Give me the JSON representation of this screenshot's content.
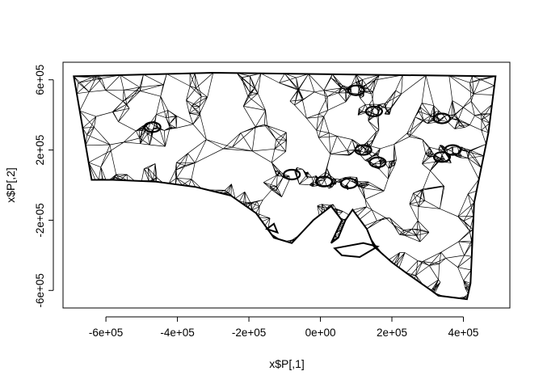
{
  "chart_data": {
    "type": "scatter",
    "title": "",
    "xlabel": "x$P[,1]",
    "ylabel": "x$P[,2]",
    "xlim": [
      -720000,
      530000
    ],
    "ylim": [
      -700000,
      700000
    ],
    "x_ticks": [
      -600000,
      -400000,
      -200000,
      0,
      200000,
      400000
    ],
    "x_tick_labels": [
      "-6e+05",
      "-4e+05",
      "-2e+05",
      "0e+00",
      "2e+05",
      "4e+05"
    ],
    "y_ticks": [
      -600000,
      -200000,
      200000,
      600000
    ],
    "y_tick_labels": [
      "-6e+05",
      "-2e+05",
      "2e+05",
      "6e+05"
    ],
    "grid": false,
    "legend": "none",
    "description_colors": {
      "line": "#000000",
      "background": "#ffffff"
    },
    "boundary": [
      [
        -690000,
        620000
      ],
      [
        -300000,
        640000
      ],
      [
        100000,
        630000
      ],
      [
        490000,
        620000
      ],
      [
        470000,
        300000
      ],
      [
        430000,
        -100000
      ],
      [
        420000,
        -560000
      ],
      [
        410000,
        -650000
      ],
      [
        330000,
        -630000
      ],
      [
        310000,
        -600000
      ],
      [
        240000,
        -500000
      ],
      [
        200000,
        -440000
      ],
      [
        150000,
        -350000
      ],
      [
        130000,
        -250000
      ],
      [
        90000,
        -140000
      ],
      [
        70000,
        -200000
      ],
      [
        50000,
        -300000
      ],
      [
        30000,
        -330000
      ],
      [
        60000,
        -200000
      ],
      [
        30000,
        -120000
      ],
      [
        -20000,
        -200000
      ],
      [
        -80000,
        -330000
      ],
      [
        -130000,
        -300000
      ],
      [
        -180000,
        -160000
      ],
      [
        -250000,
        -60000
      ],
      [
        -350000,
        -10000
      ],
      [
        -460000,
        20000
      ],
      [
        -580000,
        30000
      ],
      [
        -640000,
        30000
      ]
    ],
    "islands": [
      [
        [
          40000,
          -360000
        ],
        [
          120000,
          -330000
        ],
        [
          160000,
          -350000
        ],
        [
          110000,
          -410000
        ],
        [
          60000,
          -400000
        ]
      ],
      [
        [
          -150000,
          -250000
        ],
        [
          -130000,
          -220000
        ],
        [
          -120000,
          -270000
        ]
      ]
    ],
    "dense_clusters": [
      [
        -470000,
        330000
      ],
      [
        -80000,
        60000
      ],
      [
        10000,
        20000
      ],
      [
        80000,
        10000
      ],
      [
        100000,
        540000
      ],
      [
        150000,
        420000
      ],
      [
        120000,
        200000
      ],
      [
        160000,
        130000
      ],
      [
        340000,
        380000
      ],
      [
        340000,
        160000
      ],
      [
        370000,
        200000
      ]
    ]
  }
}
